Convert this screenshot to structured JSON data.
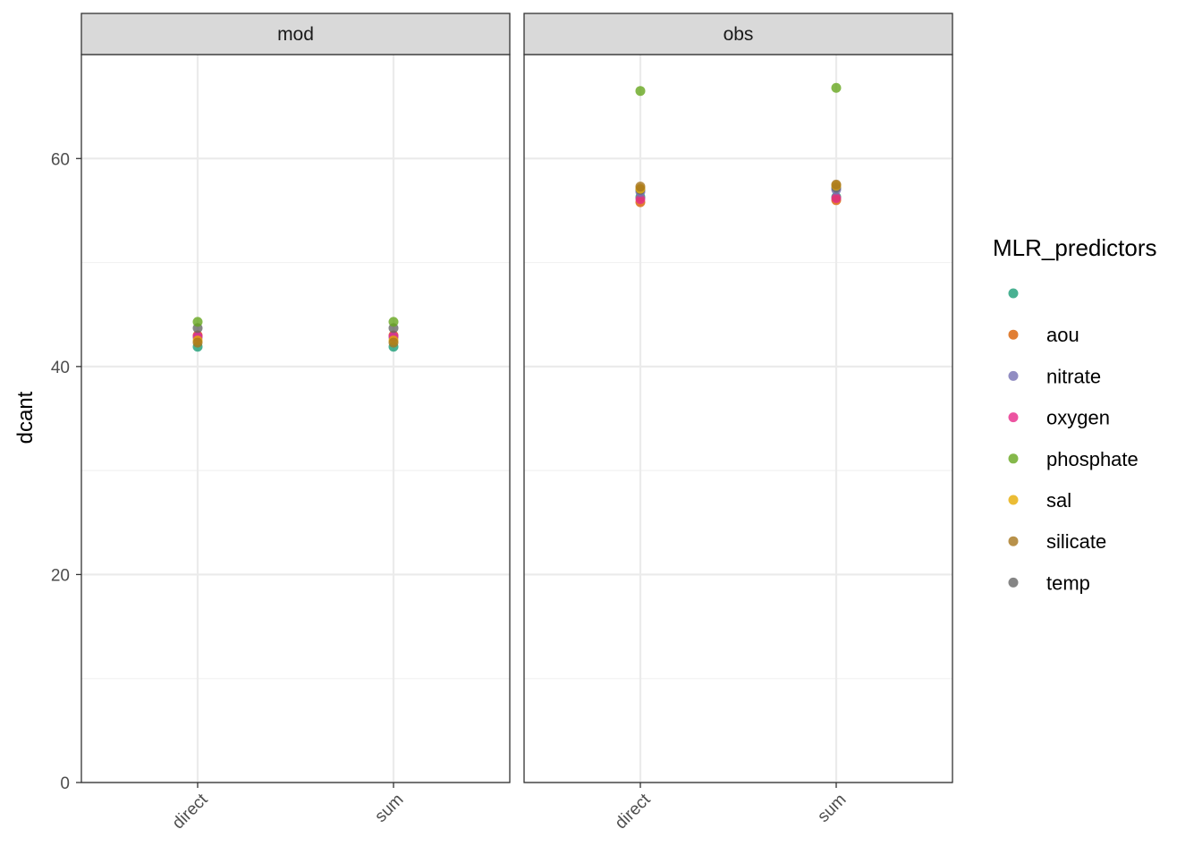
{
  "chart_data": {
    "type": "scatter",
    "title": "",
    "xlabel": "",
    "ylabel": "dcant",
    "ylim": [
      0,
      70
    ],
    "yticks": [
      0,
      20,
      40,
      60
    ],
    "categories": [
      "direct",
      "sum"
    ],
    "grid": true,
    "facets": [
      {
        "label": "mod",
        "points": [
          {
            "x": "direct",
            "predictor": "",
            "y": 41.9
          },
          {
            "x": "direct",
            "predictor": "aou",
            "y": 43.0
          },
          {
            "x": "direct",
            "predictor": "nitrate",
            "y": 42.8
          },
          {
            "x": "direct",
            "predictor": "oxygen",
            "y": 42.9
          },
          {
            "x": "direct",
            "predictor": "sal",
            "y": 42.5
          },
          {
            "x": "direct",
            "predictor": "silicate",
            "y": 42.3
          },
          {
            "x": "direct",
            "predictor": "temp",
            "y": 43.7
          },
          {
            "x": "direct",
            "predictor": "phosphate",
            "y": 44.3
          },
          {
            "x": "sum",
            "predictor": "",
            "y": 41.9
          },
          {
            "x": "sum",
            "predictor": "aou",
            "y": 43.0
          },
          {
            "x": "sum",
            "predictor": "nitrate",
            "y": 42.8
          },
          {
            "x": "sum",
            "predictor": "oxygen",
            "y": 42.9
          },
          {
            "x": "sum",
            "predictor": "sal",
            "y": 42.5
          },
          {
            "x": "sum",
            "predictor": "silicate",
            "y": 42.3
          },
          {
            "x": "sum",
            "predictor": "temp",
            "y": 43.7
          },
          {
            "x": "sum",
            "predictor": "phosphate",
            "y": 44.3
          }
        ]
      },
      {
        "label": "obs",
        "points": [
          {
            "x": "direct",
            "predictor": "",
            "y": 56.3
          },
          {
            "x": "direct",
            "predictor": "aou",
            "y": 55.8
          },
          {
            "x": "direct",
            "predictor": "oxygen",
            "y": 56.1
          },
          {
            "x": "direct",
            "predictor": "nitrate",
            "y": 56.8
          },
          {
            "x": "direct",
            "predictor": "temp",
            "y": 57.0
          },
          {
            "x": "direct",
            "predictor": "sal",
            "y": 57.1
          },
          {
            "x": "direct",
            "predictor": "silicate",
            "y": 57.3
          },
          {
            "x": "direct",
            "predictor": "phosphate",
            "y": 66.5
          },
          {
            "x": "sum",
            "predictor": "",
            "y": 56.3
          },
          {
            "x": "sum",
            "predictor": "aou",
            "y": 56.0
          },
          {
            "x": "sum",
            "predictor": "oxygen",
            "y": 56.2
          },
          {
            "x": "sum",
            "predictor": "nitrate",
            "y": 57.0
          },
          {
            "x": "sum",
            "predictor": "temp",
            "y": 57.2
          },
          {
            "x": "sum",
            "predictor": "sal",
            "y": 57.4
          },
          {
            "x": "sum",
            "predictor": "silicate",
            "y": 57.5
          },
          {
            "x": "sum",
            "predictor": "phosphate",
            "y": 66.8
          }
        ]
      }
    ],
    "legend": {
      "title": "MLR_predictors",
      "position": "right",
      "entries": [
        {
          "label": "",
          "color": "#1b9e77"
        },
        {
          "label": "aou",
          "color": "#d95f02"
        },
        {
          "label": "nitrate",
          "color": "#7570b3"
        },
        {
          "label": "oxygen",
          "color": "#e7298a"
        },
        {
          "label": "phosphate",
          "color": "#66a61e"
        },
        {
          "label": "sal",
          "color": "#e6ab02"
        },
        {
          "label": "silicate",
          "color": "#a6761d"
        },
        {
          "label": "temp",
          "color": "#666666"
        }
      ]
    }
  }
}
